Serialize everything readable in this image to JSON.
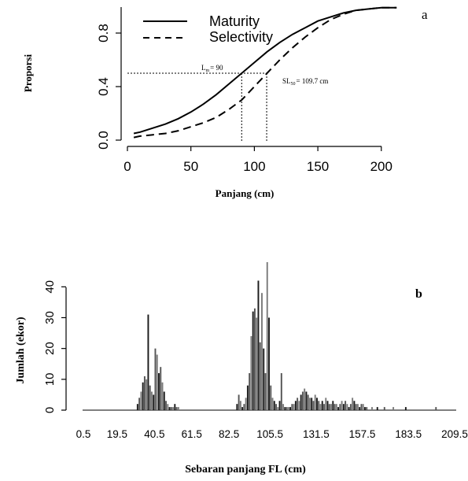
{
  "chart_data": [
    {
      "type": "line",
      "panel_label": "a",
      "xlabel": "Panjang (cm)",
      "ylabel": "Proporsi",
      "xlim": [
        0,
        215
      ],
      "ylim": [
        0,
        1
      ],
      "x_ticks": [
        "0",
        "50",
        "100",
        "150",
        "200"
      ],
      "y_ticks": [
        "0.0",
        "0.4",
        "0.8"
      ],
      "legend_position": "top-left",
      "series": [
        {
          "name": "Maturity",
          "style": "solid",
          "x": [
            5,
            10,
            20,
            30,
            40,
            50,
            60,
            70,
            80,
            90,
            100,
            110,
            120,
            130,
            140,
            150,
            160,
            170,
            180,
            190,
            200,
            212
          ],
          "values": [
            0.05,
            0.06,
            0.09,
            0.12,
            0.16,
            0.21,
            0.27,
            0.34,
            0.42,
            0.5,
            0.58,
            0.66,
            0.73,
            0.79,
            0.84,
            0.89,
            0.92,
            0.95,
            0.97,
            0.98,
            0.99,
            0.99
          ]
        },
        {
          "name": "Selectivity",
          "style": "dashed",
          "x": [
            5,
            10,
            20,
            30,
            40,
            50,
            60,
            70,
            80,
            90,
            100,
            110,
            120,
            130,
            140,
            150,
            160,
            170,
            180,
            190,
            200,
            212
          ],
          "values": [
            0.02,
            0.03,
            0.04,
            0.05,
            0.07,
            0.1,
            0.13,
            0.17,
            0.23,
            0.3,
            0.4,
            0.5,
            0.6,
            0.69,
            0.77,
            0.84,
            0.9,
            0.94,
            0.97,
            0.98,
            0.99,
            0.99
          ]
        }
      ],
      "annotations": [
        {
          "text_main": "L",
          "text_sub": "m",
          "text_rest": "= 90",
          "x": 90,
          "y": 0.5
        },
        {
          "text_main": "SL",
          "text_sub": "50",
          "text_rest": "= 109.7 cm",
          "x": 109.7,
          "y": 0.5
        }
      ]
    },
    {
      "type": "bar",
      "panel_label": "b",
      "xlabel": "Sebaran panjang FL (cm)",
      "ylabel": "Jumlah (ekor)",
      "xlim": [
        0.5,
        209.5
      ],
      "ylim": [
        0,
        48
      ],
      "x_ticks": [
        "0.5",
        "19.5",
        "40.5",
        "61.5",
        "82.5",
        "105.5",
        "131.5",
        "157.5",
        "183.5",
        "209.5"
      ],
      "x_tick_values": [
        0.5,
        19.5,
        40.5,
        61.5,
        82.5,
        105.5,
        131.5,
        157.5,
        183.5,
        209.5
      ],
      "y_ticks": [
        "0",
        "10",
        "20",
        "30",
        "40"
      ],
      "x": [
        31,
        32,
        33,
        34,
        35,
        36,
        37,
        38,
        39,
        40,
        41,
        42,
        43,
        44,
        45,
        46,
        47,
        48,
        49,
        50,
        51,
        52,
        53,
        54,
        87,
        88,
        89,
        90,
        91,
        92,
        93,
        94,
        95,
        96,
        97,
        98,
        99,
        100,
        101,
        102,
        103,
        104,
        105,
        106,
        107,
        108,
        109,
        110,
        111,
        112,
        113,
        114,
        115,
        116,
        117,
        118,
        119,
        120,
        121,
        122,
        123,
        124,
        125,
        126,
        127,
        128,
        129,
        130,
        131,
        132,
        133,
        134,
        135,
        136,
        137,
        138,
        139,
        140,
        141,
        142,
        143,
        144,
        145,
        146,
        147,
        148,
        149,
        150,
        151,
        152,
        153,
        154,
        155,
        156,
        157,
        158,
        159,
        160,
        163,
        166,
        170,
        175,
        182,
        199
      ],
      "values": [
        2,
        4,
        6,
        9,
        11,
        10,
        31,
        8,
        6,
        5,
        20,
        18,
        12,
        14,
        9,
        6,
        3,
        2,
        1,
        1,
        1,
        2,
        1,
        1,
        2,
        5,
        3,
        1,
        2,
        4,
        8,
        12,
        24,
        32,
        33,
        30,
        42,
        22,
        38,
        20,
        12,
        48,
        30,
        8,
        4,
        3,
        2,
        1,
        3,
        12,
        2,
        1,
        1,
        1,
        1,
        2,
        2,
        3,
        4,
        3,
        5,
        6,
        7,
        6,
        5,
        4,
        4,
        3,
        5,
        4,
        3,
        2,
        3,
        2,
        4,
        3,
        2,
        2,
        3,
        2,
        2,
        1,
        2,
        3,
        2,
        3,
        2,
        1,
        2,
        4,
        3,
        2,
        2,
        1,
        2,
        2,
        1,
        1,
        1,
        1,
        1,
        1,
        1,
        1
      ]
    }
  ]
}
